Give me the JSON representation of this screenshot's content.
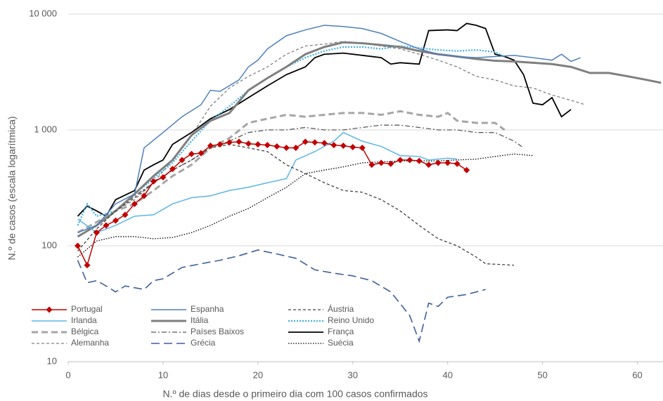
{
  "chart_data": {
    "type": "line",
    "y_scale": "log",
    "grid": true,
    "legend": "lower left",
    "x_label": "N.º de dias desde o primeiro dia com 100 casos confirmados",
    "y_label": "N.º de casos (escala logarítmica)",
    "xlim": [
      0,
      62.7
    ],
    "xticks": [
      0,
      10,
      20,
      30,
      40,
      50,
      60
    ],
    "ylim": [
      10,
      10000
    ],
    "yticks": [
      10,
      100,
      {
        "value": 1000,
        "label": "1 000"
      },
      {
        "value": 10000,
        "label": "10 000"
      }
    ],
    "series": [
      {
        "name": "Portugal",
        "color": "#c00000",
        "line_style": "solid",
        "marker": "diamond",
        "x": [
          1,
          2,
          3,
          4,
          5,
          6,
          7,
          8,
          9,
          10,
          11,
          12,
          13,
          14,
          15,
          16,
          17,
          18,
          19,
          20,
          21,
          22,
          23,
          24,
          25,
          26,
          27,
          28,
          29,
          30,
          31,
          32,
          33,
          34,
          35,
          36,
          37,
          38,
          39,
          40,
          41,
          42
        ],
        "values": [
          100,
          68,
          130,
          150,
          165,
          185,
          230,
          270,
          360,
          390,
          460,
          550,
          620,
          630,
          730,
          750,
          780,
          790,
          760,
          750,
          740,
          720,
          700,
          700,
          790,
          780,
          770,
          740,
          730,
          710,
          700,
          500,
          520,
          510,
          550,
          550,
          540,
          500,
          520,
          520,
          510,
          450
        ]
      },
      {
        "name": "Espanha",
        "color": "#4f7fbe",
        "line_style": "solid",
        "x": [
          1,
          3,
          5,
          7,
          8,
          10,
          12,
          14,
          15,
          16,
          18,
          19,
          20,
          21,
          23,
          25,
          27,
          29,
          31,
          33,
          35,
          37,
          39,
          41,
          43,
          45,
          47,
          49,
          51,
          52,
          53,
          54
        ],
        "values": [
          130,
          150,
          230,
          280,
          700,
          950,
          1300,
          1650,
          2200,
          2150,
          2700,
          3500,
          4000,
          5000,
          6500,
          7300,
          8000,
          7800,
          7500,
          6800,
          5800,
          5000,
          4500,
          4300,
          4200,
          4300,
          4400,
          4200,
          4000,
          4500,
          3900,
          4200
        ]
      },
      {
        "name": "Áustria",
        "color": "#404040",
        "line_style": "dashed",
        "x": [
          1,
          3,
          5,
          7,
          9,
          11,
          13,
          15,
          17,
          19,
          21,
          23,
          25,
          27,
          29,
          31,
          33,
          35,
          37,
          39,
          41,
          43,
          44,
          47
        ],
        "values": [
          90,
          140,
          200,
          260,
          350,
          450,
          550,
          700,
          750,
          700,
          650,
          500,
          420,
          350,
          300,
          290,
          250,
          200,
          150,
          115,
          100,
          80,
          70,
          68
        ]
      },
      {
        "name": "Irlanda",
        "color": "#5bb6e6",
        "line_style": "solid",
        "x": [
          1,
          3,
          5,
          7,
          9,
          11,
          13,
          15,
          17,
          19,
          21,
          23,
          24,
          26,
          28,
          29,
          31,
          33,
          35,
          37,
          38,
          40,
          41
        ],
        "values": [
          170,
          130,
          150,
          180,
          185,
          230,
          260,
          270,
          300,
          320,
          350,
          380,
          550,
          650,
          800,
          950,
          800,
          720,
          600,
          590,
          550,
          570,
          560
        ]
      },
      {
        "name": "Itália",
        "color": "#7f7f7f",
        "line_style": "thick",
        "x": [
          1,
          3,
          5,
          7,
          9,
          11,
          13,
          15,
          17,
          19,
          21,
          23,
          25,
          27,
          29,
          31,
          33,
          35,
          37,
          39,
          41,
          43,
          45,
          47,
          49,
          51,
          53,
          55,
          57,
          59,
          61,
          62.5
        ],
        "values": [
          120,
          150,
          200,
          280,
          400,
          550,
          900,
          1200,
          1400,
          2200,
          2800,
          3500,
          4500,
          5200,
          5700,
          5600,
          5400,
          5200,
          4800,
          4500,
          4300,
          4100,
          3950,
          3900,
          3800,
          3700,
          3500,
          3100,
          3100,
          2900,
          2700,
          2550
        ]
      },
      {
        "name": "Reino Unido",
        "color": "#3fb0e8",
        "line_style": "dotted-thick",
        "x": [
          1,
          2,
          3,
          5,
          7,
          9,
          11,
          13,
          15,
          17,
          19,
          21,
          23,
          25,
          27,
          29,
          31,
          33,
          35,
          37,
          39,
          41,
          43,
          45,
          46
        ],
        "values": [
          150,
          230,
          180,
          200,
          280,
          380,
          520,
          800,
          1200,
          1600,
          2200,
          2800,
          3500,
          4200,
          4800,
          5200,
          5200,
          5000,
          5300,
          5100,
          4900,
          4800,
          4900,
          4700,
          4300
        ]
      },
      {
        "name": "Bélgica",
        "color": "#a6a6a6",
        "line_style": "thick-dashed",
        "x": [
          1,
          3,
          5,
          7,
          9,
          11,
          13,
          15,
          17,
          19,
          21,
          23,
          25,
          27,
          29,
          31,
          33,
          35,
          37,
          39,
          40,
          41,
          43,
          45,
          46
        ],
        "values": [
          130,
          160,
          200,
          230,
          300,
          400,
          500,
          700,
          850,
          1150,
          1250,
          1350,
          1300,
          1350,
          1400,
          1400,
          1350,
          1450,
          1350,
          1300,
          1400,
          1200,
          1150,
          1150,
          1000
        ]
      },
      {
        "name": "Países Baixos",
        "color": "#595959",
        "line_style": "dashdot",
        "x": [
          1,
          3,
          5,
          7,
          9,
          11,
          13,
          15,
          17,
          19,
          21,
          23,
          25,
          27,
          29,
          31,
          33,
          35,
          37,
          39,
          41,
          43,
          45,
          47,
          48
        ],
        "values": [
          120,
          150,
          200,
          270,
          350,
          450,
          550,
          700,
          800,
          950,
          1000,
          1000,
          1050,
          1000,
          1000,
          1050,
          1100,
          1100,
          1050,
          1000,
          1000,
          950,
          950,
          800,
          700
        ]
      },
      {
        "name": "França",
        "color": "#000000",
        "line_style": "solid-thick",
        "x": [
          1,
          2,
          3,
          4,
          5,
          7,
          8,
          9,
          10,
          11,
          13,
          15,
          17,
          19,
          21,
          23,
          25,
          26,
          27,
          29,
          31,
          33,
          34,
          35,
          37,
          38,
          40,
          41,
          42,
          43,
          44,
          45,
          46,
          47,
          48,
          49,
          50,
          51,
          52,
          53
        ],
        "values": [
          180,
          220,
          200,
          180,
          250,
          300,
          450,
          500,
          550,
          750,
          950,
          1250,
          1500,
          1900,
          2400,
          3000,
          3500,
          4200,
          4500,
          4600,
          4400,
          4200,
          3700,
          3800,
          3700,
          7200,
          7300,
          7200,
          8300,
          8000,
          7500,
          4500,
          4300,
          4000,
          3000,
          1700,
          1650,
          1900,
          1300,
          1500
        ]
      },
      {
        "name": "Alemanha",
        "color": "#808080",
        "line_style": "dashed",
        "x": [
          1,
          3,
          5,
          7,
          9,
          11,
          13,
          15,
          17,
          19,
          21,
          23,
          25,
          27,
          29,
          31,
          33,
          35,
          37,
          39,
          41,
          43,
          45,
          47,
          49,
          51,
          53,
          54.5
        ],
        "values": [
          130,
          150,
          200,
          250,
          350,
          550,
          900,
          1600,
          2300,
          2900,
          3500,
          4500,
          5300,
          5500,
          5800,
          5600,
          5300,
          5000,
          4500,
          4000,
          3500,
          2900,
          2700,
          2400,
          2300,
          2000,
          1800,
          1650
        ]
      },
      {
        "name": "Grécia",
        "color": "#3c5f9a",
        "line_style": "longdash",
        "x": [
          1,
          2,
          3,
          4,
          5,
          6,
          8,
          9,
          10,
          12,
          14,
          16,
          18,
          20,
          22,
          24,
          26,
          28,
          30,
          32,
          34,
          36,
          37,
          38,
          39,
          40,
          42,
          44
        ],
        "values": [
          75,
          48,
          50,
          45,
          40,
          45,
          42,
          50,
          52,
          65,
          70,
          75,
          82,
          92,
          85,
          78,
          62,
          58,
          55,
          50,
          40,
          25,
          15,
          32,
          30,
          36,
          38,
          42
        ]
      },
      {
        "name": "Suécia",
        "color": "#000000",
        "line_style": "dotted",
        "x": [
          1,
          3,
          5,
          7,
          9,
          11,
          13,
          15,
          17,
          19,
          21,
          23,
          25,
          27,
          29,
          31,
          33,
          35,
          37,
          39,
          41,
          43,
          45,
          47,
          49
        ],
        "values": [
          80,
          110,
          120,
          120,
          115,
          118,
          130,
          150,
          180,
          210,
          260,
          320,
          420,
          450,
          480,
          520,
          530,
          540,
          540,
          540,
          550,
          560,
          590,
          620,
          600
        ]
      }
    ]
  }
}
